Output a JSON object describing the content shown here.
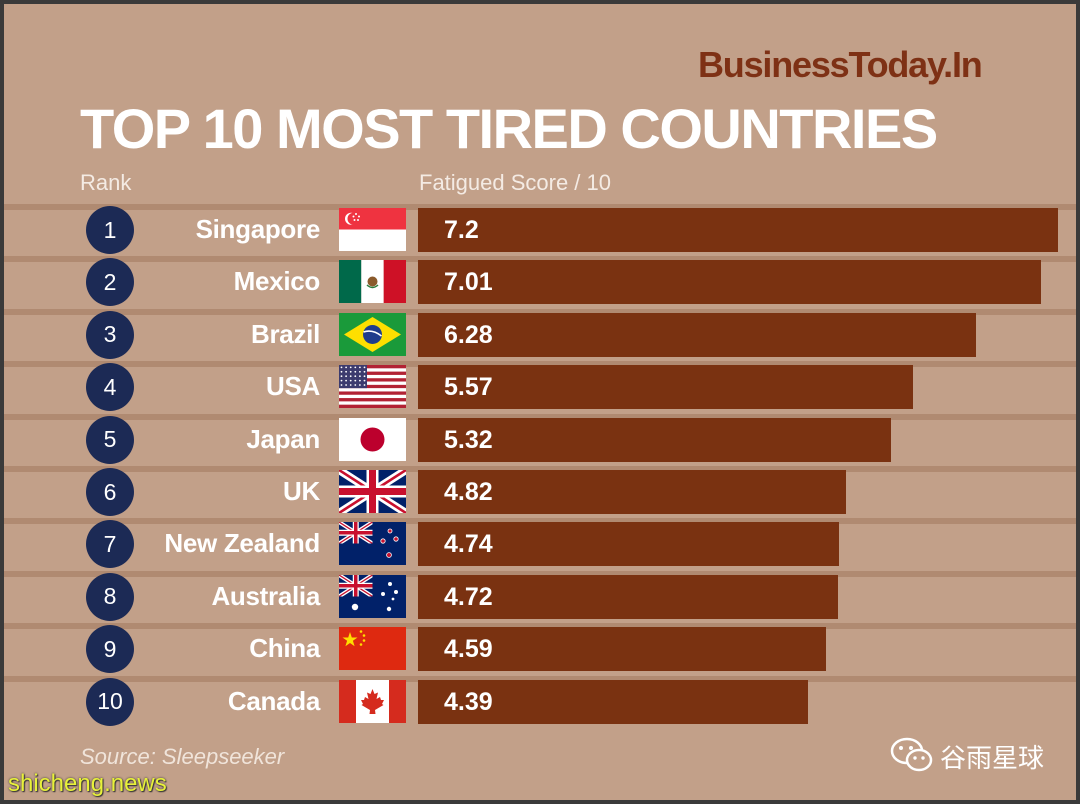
{
  "brand": "BusinessToday.In",
  "title": "TOP 10 MOST TIRED COUNTRIES",
  "rank_header": "Rank",
  "score_header": "Fatigued Score / 10",
  "source": "Source: Sleepseeker",
  "watermark_site": "shicheng.news",
  "watermark_account": "谷雨星球",
  "chart_data": {
    "type": "bar",
    "orientation": "horizontal",
    "title": "TOP 10 MOST TIRED COUNTRIES",
    "xlabel": "Fatigued Score / 10",
    "ylabel": "Rank",
    "xlim": [
      0,
      7.2
    ],
    "grid": false,
    "ranks": [
      "1",
      "2",
      "3",
      "4",
      "5",
      "6",
      "7",
      "8",
      "9",
      "10"
    ],
    "categories": [
      "Singapore",
      "Mexico",
      "Brazil",
      "USA",
      "Japan",
      "UK",
      "New Zealand",
      "Australia",
      "China",
      "Canada"
    ],
    "values": [
      7.2,
      7.01,
      6.28,
      5.57,
      5.32,
      4.82,
      4.74,
      4.72,
      4.59,
      4.39
    ],
    "value_labels": [
      "7.2",
      "7.01",
      "6.28",
      "5.57",
      "5.32",
      "4.82",
      "4.74",
      "4.72",
      "4.59",
      "4.39"
    ],
    "flags": [
      "singapore-flag-icon",
      "mexico-flag-icon",
      "brazil-flag-icon",
      "usa-flag-icon",
      "japan-flag-icon",
      "uk-flag-icon",
      "new-zealand-flag-icon",
      "australia-flag-icon",
      "china-flag-icon",
      "canada-flag-icon"
    ],
    "colors": {
      "bar": "#7a3211",
      "rank_circle": "#1c2a55",
      "background": "#c2a089"
    }
  }
}
